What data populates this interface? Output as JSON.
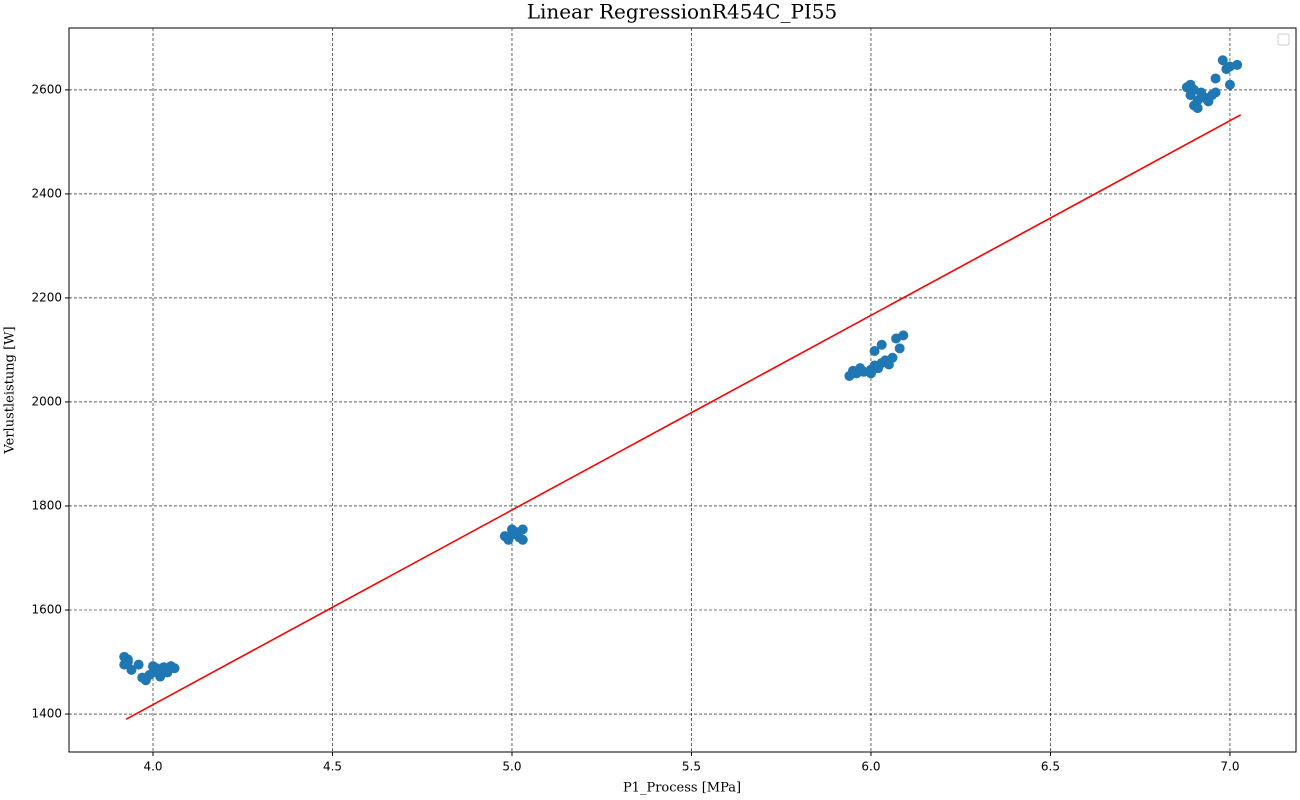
{
  "chart_data": {
    "type": "scatter",
    "title": "Linear RegressionR454C_PI55",
    "x_label": "P1_Process [MPa]",
    "y_label": "Verlustleistung [W]",
    "xlim": [
      3.766,
      7.184
    ],
    "ylim": [
      1327,
      2719
    ],
    "xticks": [
      {
        "value": 4,
        "label": "4.0"
      },
      4.5,
      {
        "value": 5,
        "label": "5.0"
      },
      5.5,
      {
        "value": 6,
        "label": "6.0"
      },
      6.5,
      {
        "value": 7,
        "label": "7.0"
      }
    ],
    "yticks": [
      1400,
      1600,
      1800,
      2000,
      2200,
      2400,
      2600
    ],
    "grid": true,
    "legend": "upper right",
    "series": [
      {
        "type": "scatter",
        "color": "#1f77b4",
        "x": [
          3.92,
          3.93,
          3.92,
          3.94,
          3.96,
          3.97,
          3.98,
          3.99,
          4.0,
          4.01,
          4.02,
          4.03,
          4.04,
          4.05,
          4.06,
          4.02,
          3.93,
          4.0,
          4.04,
          4.99,
          5.0,
          5.01,
          5.02,
          5.03,
          5.03,
          5.0,
          4.98,
          5.94,
          5.95,
          5.96,
          5.97,
          5.98,
          6.0,
          6.01,
          6.02,
          6.03,
          6.04,
          6.05,
          6.06,
          6.01,
          6.03,
          6.07,
          6.09,
          6.08,
          6.0,
          6.88,
          6.89,
          6.9,
          6.91,
          6.9,
          6.92,
          6.93,
          6.95,
          6.96,
          6.96,
          6.98,
          6.99,
          7.0,
          7.0,
          7.02,
          6.89,
          6.91,
          6.94
        ],
        "values": [
          1510,
          1505,
          1495,
          1485,
          1495,
          1470,
          1465,
          1475,
          1480,
          1488,
          1478,
          1490,
          1485,
          1492,
          1488,
          1472,
          1500,
          1492,
          1480,
          1735,
          1745,
          1750,
          1740,
          1755,
          1735,
          1755,
          1742,
          2050,
          2060,
          2055,
          2065,
          2058,
          2062,
          2070,
          2065,
          2075,
          2080,
          2072,
          2085,
          2098,
          2110,
          2122,
          2128,
          2103,
          2055,
          2605,
          2590,
          2600,
          2580,
          2570,
          2595,
          2585,
          2590,
          2595,
          2622,
          2657,
          2640,
          2610,
          2645,
          2648,
          2610,
          2565,
          2578
        ]
      },
      {
        "type": "line",
        "color": "#ff0000",
        "x": [
          3.925,
          7.03
        ],
        "values": [
          1390,
          2552
        ]
      }
    ]
  }
}
